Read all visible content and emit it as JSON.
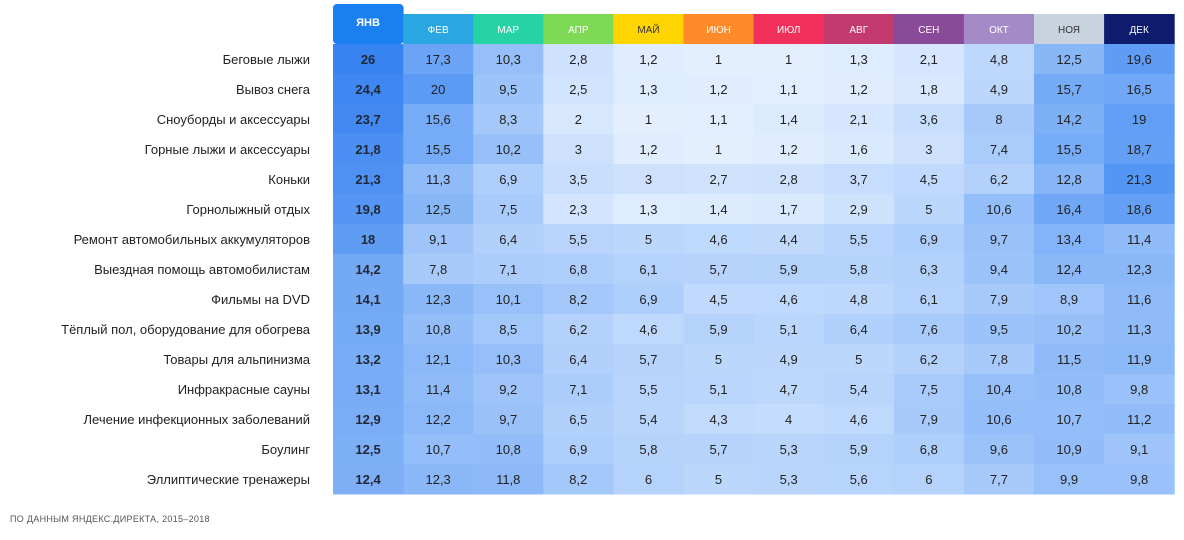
{
  "chart_data": {
    "type": "heatmap",
    "title": "",
    "columns": [
      {
        "label": "ЯНВ",
        "color": "#1a7ff0"
      },
      {
        "label": "ФЕВ",
        "color": "#2aa6e0"
      },
      {
        "label": "МАР",
        "color": "#26d3a5"
      },
      {
        "label": "АПР",
        "color": "#7ed957"
      },
      {
        "label": "МАЙ",
        "color": "#ffd400"
      },
      {
        "label": "ИЮН",
        "color": "#ff8a2a"
      },
      {
        "label": "ИЮЛ",
        "color": "#f0305a"
      },
      {
        "label": "АВГ",
        "color": "#c23a6e"
      },
      {
        "label": "СЕН",
        "color": "#8a4a9a"
      },
      {
        "label": "ОКТ",
        "color": "#a58ac8"
      },
      {
        "label": "НОЯ",
        "color": "#c9d3de"
      },
      {
        "label": "ДЕК",
        "color": "#0e1b6e"
      }
    ],
    "rows": [
      {
        "label": "Беговые лыжи",
        "values": [
          "26",
          "17,3",
          "10,3",
          "2,8",
          "1,2",
          "1",
          "1",
          "1,3",
          "2,1",
          "4,8",
          "12,5",
          "19,6"
        ]
      },
      {
        "label": "Вывоз снега",
        "values": [
          "24,4",
          "20",
          "9,5",
          "2,5",
          "1,3",
          "1,2",
          "1,1",
          "1,2",
          "1,8",
          "4,9",
          "15,7",
          "16,5"
        ]
      },
      {
        "label": "Сноуборды и аксессуары",
        "values": [
          "23,7",
          "15,6",
          "8,3",
          "2",
          "1",
          "1,1",
          "1,4",
          "2,1",
          "3,6",
          "8",
          "14,2",
          "19"
        ]
      },
      {
        "label": "Горные лыжи и аксессуары",
        "values": [
          "21,8",
          "15,5",
          "10,2",
          "3",
          "1,2",
          "1",
          "1,2",
          "1,6",
          "3",
          "7,4",
          "15,5",
          "18,7"
        ]
      },
      {
        "label": "Коньки",
        "values": [
          "21,3",
          "11,3",
          "6,9",
          "3,5",
          "3",
          "2,7",
          "2,8",
          "3,7",
          "4,5",
          "6,2",
          "12,8",
          "21,3"
        ]
      },
      {
        "label": "Горнолыжный отдых",
        "values": [
          "19,8",
          "12,5",
          "7,5",
          "2,3",
          "1,3",
          "1,4",
          "1,7",
          "2,9",
          "5",
          "10,6",
          "16,4",
          "18,6"
        ]
      },
      {
        "label": "Ремонт автомобильных аккумуляторов",
        "values": [
          "18",
          "9,1",
          "6,4",
          "5,5",
          "5",
          "4,6",
          "4,4",
          "5,5",
          "6,9",
          "9,7",
          "13,4",
          "11,4"
        ]
      },
      {
        "label": "Выездная помощь автомобилистам",
        "values": [
          "14,2",
          "7,8",
          "7,1",
          "6,8",
          "6,1",
          "5,7",
          "5,9",
          "5,8",
          "6,3",
          "9,4",
          "12,4",
          "12,3"
        ]
      },
      {
        "label": "Фильмы на DVD",
        "values": [
          "14,1",
          "12,3",
          "10,1",
          "8,2",
          "6,9",
          "4,5",
          "4,6",
          "4,8",
          "6,1",
          "7,9",
          "8,9",
          "11,6"
        ]
      },
      {
        "label": "Тёплый пол, оборудование для обогрева",
        "values": [
          "13,9",
          "10,8",
          "8,5",
          "6,2",
          "4,6",
          "5,9",
          "5,1",
          "6,4",
          "7,6",
          "9,5",
          "10,2",
          "11,3"
        ]
      },
      {
        "label": "Товары для альпинизма",
        "values": [
          "13,2",
          "12,1",
          "10,3",
          "6,4",
          "5,7",
          "5",
          "4,9",
          "5",
          "6,2",
          "7,8",
          "11,5",
          "11,9"
        ]
      },
      {
        "label": "Инфракрасные сауны",
        "values": [
          "13,1",
          "11,4",
          "9,2",
          "7,1",
          "5,5",
          "5,1",
          "4,7",
          "5,4",
          "7,5",
          "10,4",
          "10,8",
          "9,8"
        ]
      },
      {
        "label": "Лечение инфекционных заболеваний",
        "values": [
          "12,9",
          "12,2",
          "9,7",
          "6,5",
          "5,4",
          "4,3",
          "4",
          "4,6",
          "7,9",
          "10,6",
          "10,7",
          "11,2"
        ]
      },
      {
        "label": "Боулинг",
        "values": [
          "12,5",
          "10,7",
          "10,8",
          "6,9",
          "5,8",
          "5,7",
          "5,3",
          "5,9",
          "6,8",
          "9,6",
          "10,9",
          "9,1"
        ]
      },
      {
        "label": "Эллиптические тренажеры",
        "values": [
          "12,4",
          "12,3",
          "11,8",
          "8,2",
          "6",
          "5",
          "5,3",
          "5,6",
          "6",
          "7,7",
          "9,9",
          "9,8"
        ]
      }
    ],
    "highlight_column": "ЯНВ",
    "color_scale": {
      "low": "#e3efff",
      "high": "#3a86f2"
    },
    "legend": "none",
    "grid": false
  },
  "source_note": "ПО ДАННЫМ ЯНДЕКС.ДИРЕКТА, 2015–2018"
}
